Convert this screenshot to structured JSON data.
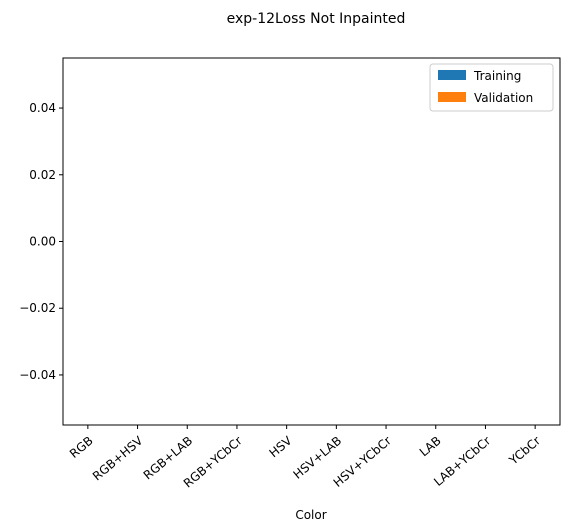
{
  "chart_data": {
    "type": "bar",
    "title": "exp-12Loss Not Inpainted",
    "xlabel": "Color",
    "ylabel": "",
    "categories": [
      "RGB",
      "RGB+HSV",
      "RGB+LAB",
      "RGB+YCbCr",
      "HSV",
      "HSV+LAB",
      "HSV+YCbCr",
      "LAB",
      "LAB+YCbCr",
      "YCbCr"
    ],
    "series": [
      {
        "name": "Training",
        "color": "#1f77b4",
        "values": [
          0,
          0,
          0,
          0,
          0,
          0,
          0,
          0,
          0,
          0
        ]
      },
      {
        "name": "Validation",
        "color": "#ff7f0e",
        "values": [
          0,
          0,
          0,
          0,
          0,
          0,
          0,
          0,
          0,
          0
        ]
      }
    ],
    "ylim": [
      -0.055,
      0.055
    ],
    "yticks": [
      "0.04",
      "0.02",
      "0.00",
      "−0.02",
      "−0.04"
    ],
    "ytick_values": [
      0.04,
      0.02,
      0.0,
      -0.02,
      -0.04
    ],
    "grid": false,
    "legend_position": "top-right"
  }
}
